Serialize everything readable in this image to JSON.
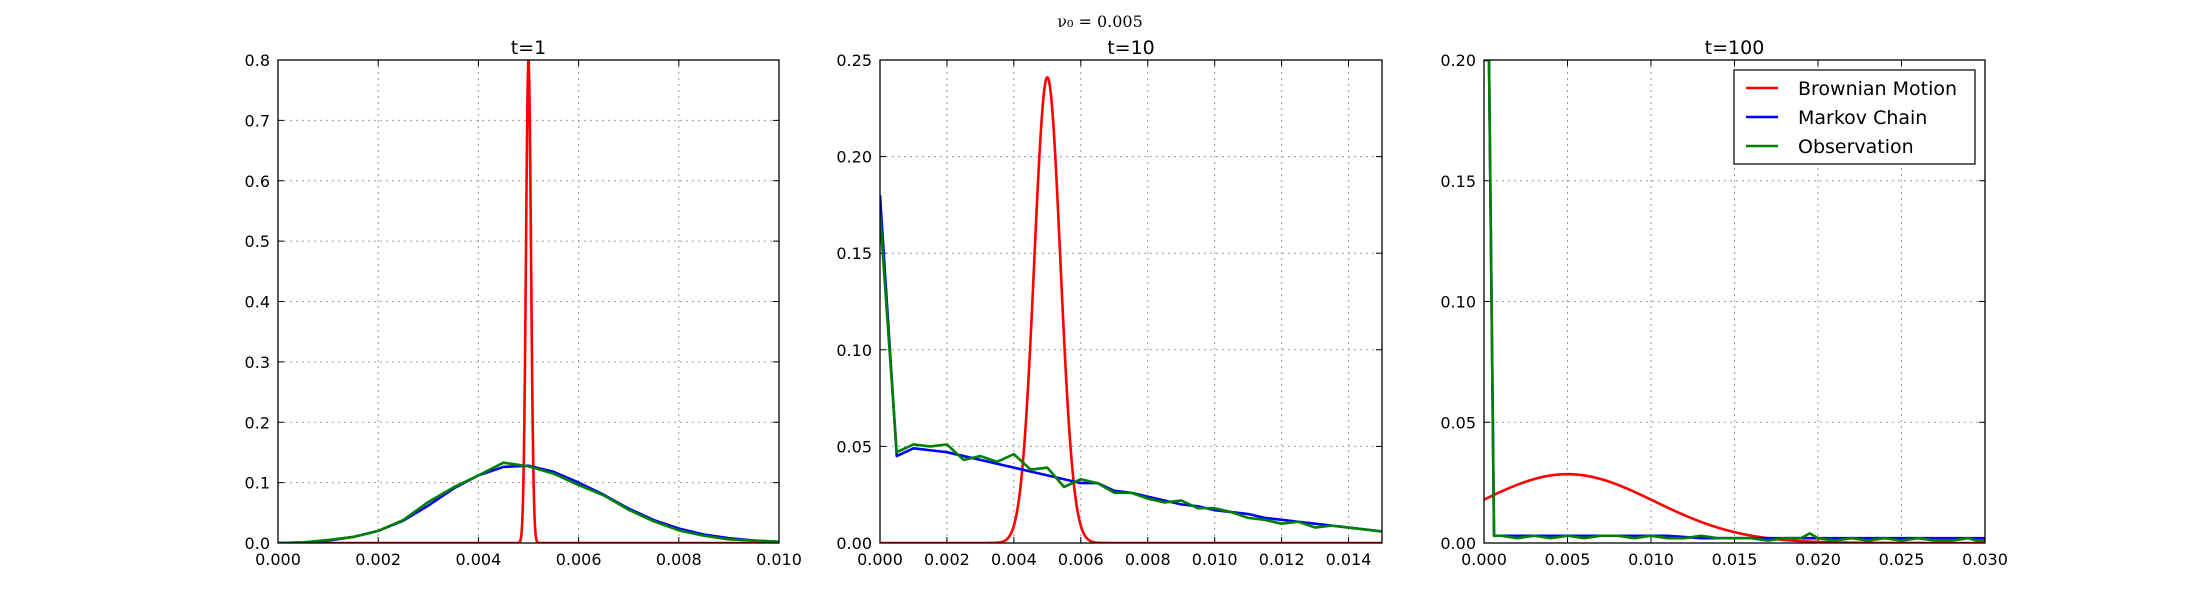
{
  "suptitle": "ν₀ = 0.005",
  "chart_data": [
    {
      "type": "line",
      "title": "t=1",
      "xlim": [
        0,
        0.01
      ],
      "ylim": [
        0,
        0.8
      ],
      "xticks": [
        "0.000",
        "0.002",
        "0.004",
        "0.006",
        "0.008",
        "0.010"
      ],
      "yticks": [
        "0.0",
        "0.1",
        "0.2",
        "0.3",
        "0.4",
        "0.5",
        "0.6",
        "0.7",
        "0.8"
      ],
      "grid": true,
      "series": [
        {
          "name": "Brownian Motion",
          "color": "#ff0000",
          "model": "gaussian",
          "mu": 0.005,
          "sigma": 5e-05,
          "amplitude": 0.8
        },
        {
          "name": "Markov Chain",
          "color": "#0000ff",
          "x": [
            0,
            0.0005,
            0.001,
            0.0015,
            0.002,
            0.0025,
            0.003,
            0.0035,
            0.004,
            0.0045,
            0.005,
            0.0055,
            0.006,
            0.0065,
            0.007,
            0.0075,
            0.008,
            0.0085,
            0.009,
            0.0095,
            0.01
          ],
          "y": [
            0,
            0.001,
            0.004,
            0.01,
            0.02,
            0.037,
            0.062,
            0.09,
            0.112,
            0.126,
            0.128,
            0.118,
            0.1,
            0.08,
            0.057,
            0.038,
            0.024,
            0.014,
            0.008,
            0.004,
            0.002
          ]
        },
        {
          "name": "Observation",
          "color": "#008000",
          "x": [
            0,
            0.0005,
            0.001,
            0.0015,
            0.002,
            0.0025,
            0.003,
            0.0035,
            0.004,
            0.0045,
            0.005,
            0.0055,
            0.006,
            0.0065,
            0.007,
            0.0075,
            0.008,
            0.0085,
            0.009,
            0.0095,
            0.01
          ],
          "y": [
            0,
            0.001,
            0.005,
            0.01,
            0.02,
            0.038,
            0.068,
            0.092,
            0.112,
            0.133,
            0.127,
            0.115,
            0.096,
            0.079,
            0.055,
            0.036,
            0.021,
            0.012,
            0.006,
            0.004,
            0.002
          ]
        }
      ]
    },
    {
      "type": "line",
      "title": "t=10",
      "xlim": [
        0,
        0.015
      ],
      "ylim": [
        0,
        0.25
      ],
      "xticks": [
        "0.000",
        "0.002",
        "0.004",
        "0.006",
        "0.008",
        "0.010",
        "0.012",
        "0.014"
      ],
      "yticks": [
        "0.00",
        "0.05",
        "0.10",
        "0.15",
        "0.20",
        "0.25"
      ],
      "grid": true,
      "series": [
        {
          "name": "Brownian Motion",
          "color": "#ff0000",
          "model": "gaussian",
          "mu": 0.005,
          "sigma": 0.00039,
          "amplitude": 0.241
        },
        {
          "name": "Markov Chain",
          "color": "#0000ff",
          "x": [
            0,
            0.0005,
            0.001,
            0.0015,
            0.002,
            0.0025,
            0.003,
            0.0035,
            0.004,
            0.0045,
            0.005,
            0.0055,
            0.006,
            0.0065,
            0.007,
            0.0075,
            0.008,
            0.0085,
            0.009,
            0.0095,
            0.01,
            0.0105,
            0.011,
            0.0115,
            0.012,
            0.0125,
            0.013,
            0.0135,
            0.014,
            0.0145,
            0.015
          ],
          "y": [
            0.18,
            0.045,
            0.049,
            0.048,
            0.047,
            0.045,
            0.043,
            0.041,
            0.039,
            0.037,
            0.035,
            0.033,
            0.031,
            0.031,
            0.027,
            0.026,
            0.024,
            0.022,
            0.02,
            0.019,
            0.017,
            0.016,
            0.015,
            0.013,
            0.012,
            0.011,
            0.01,
            0.009,
            0.008,
            0.007,
            0.006
          ]
        },
        {
          "name": "Observation",
          "color": "#008000",
          "x": [
            0,
            0.0005,
            0.001,
            0.0015,
            0.002,
            0.0025,
            0.003,
            0.0035,
            0.004,
            0.0045,
            0.005,
            0.0055,
            0.006,
            0.0065,
            0.007,
            0.0075,
            0.008,
            0.0085,
            0.009,
            0.0095,
            0.01,
            0.0105,
            0.011,
            0.0115,
            0.012,
            0.0125,
            0.013,
            0.0135,
            0.014,
            0.0145,
            0.015
          ],
          "y": [
            0.17,
            0.047,
            0.051,
            0.05,
            0.051,
            0.043,
            0.045,
            0.042,
            0.046,
            0.038,
            0.039,
            0.029,
            0.033,
            0.031,
            0.026,
            0.026,
            0.023,
            0.021,
            0.022,
            0.018,
            0.018,
            0.016,
            0.013,
            0.012,
            0.01,
            0.011,
            0.008,
            0.009,
            0.008,
            0.007,
            0.006
          ]
        }
      ]
    },
    {
      "type": "line",
      "title": "t=100",
      "xlim": [
        0,
        0.03
      ],
      "ylim": [
        0,
        0.2
      ],
      "xticks": [
        "0.000",
        "0.005",
        "0.010",
        "0.015",
        "0.020",
        "0.025",
        "0.030"
      ],
      "yticks": [
        "0.00",
        "0.05",
        "0.10",
        "0.15",
        "0.20"
      ],
      "grid": true,
      "legend": "top-right",
      "series": [
        {
          "name": "Brownian Motion",
          "color": "#ff0000",
          "model": "gaussian",
          "mu": 0.005,
          "sigma": 0.0052,
          "amplitude": 0.0285
        },
        {
          "name": "Markov Chain",
          "color": "#0000ff",
          "x": [
            0,
            0.0003,
            0.0006,
            0.001,
            0.003,
            0.005,
            0.007,
            0.009,
            0.011,
            0.013,
            0.015,
            0.017,
            0.019,
            0.021,
            0.023,
            0.025,
            0.027,
            0.029,
            0.03
          ],
          "y": [
            0.2,
            0.2,
            0.003,
            0.003,
            0.003,
            0.003,
            0.003,
            0.003,
            0.003,
            0.002,
            0.002,
            0.002,
            0.002,
            0.002,
            0.002,
            0.002,
            0.002,
            0.002,
            0.002
          ]
        },
        {
          "name": "Observation",
          "color": "#008000",
          "x": [
            0,
            0.0003,
            0.0006,
            0.001,
            0.002,
            0.003,
            0.004,
            0.005,
            0.006,
            0.007,
            0.008,
            0.009,
            0.01,
            0.011,
            0.012,
            0.013,
            0.014,
            0.015,
            0.016,
            0.017,
            0.018,
            0.019,
            0.0195,
            0.02,
            0.021,
            0.022,
            0.023,
            0.024,
            0.025,
            0.026,
            0.027,
            0.028,
            0.029,
            0.0295,
            0.03
          ],
          "y": [
            0.2,
            0.2,
            0.003,
            0.003,
            0.002,
            0.003,
            0.002,
            0.003,
            0.002,
            0.003,
            0.003,
            0.002,
            0.003,
            0.002,
            0.002,
            0.003,
            0.002,
            0.002,
            0.002,
            0.001,
            0.002,
            0.002,
            0.004,
            0.002,
            0.001,
            0.002,
            0.001,
            0.002,
            0.001,
            0.002,
            0.001,
            0.001,
            0.002,
            0.001,
            0.001
          ]
        }
      ]
    }
  ]
}
